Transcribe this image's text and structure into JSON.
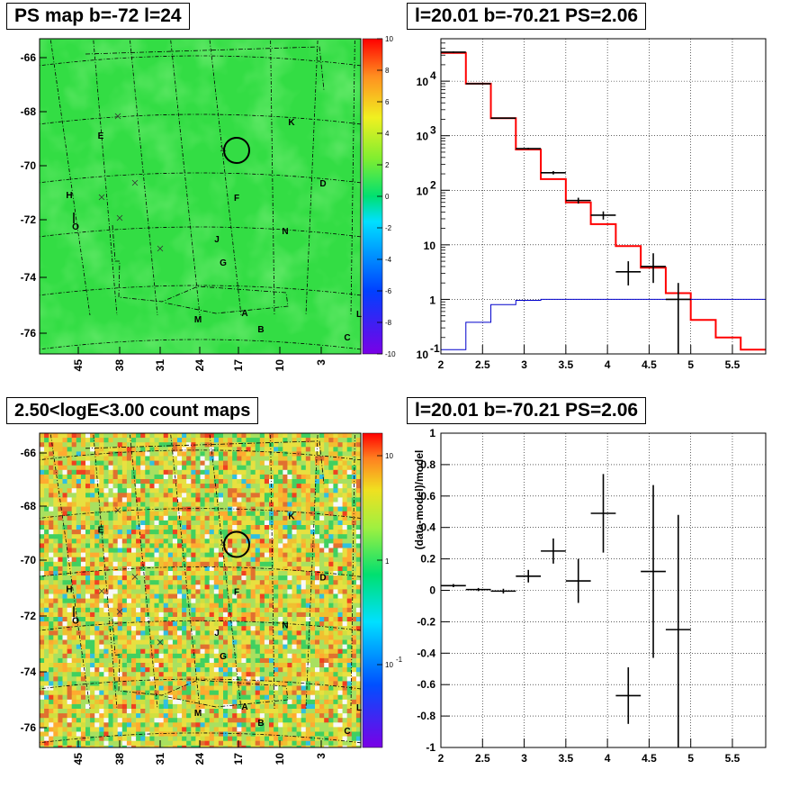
{
  "titles": {
    "tl": "PS map b=-72 l=24",
    "tr": "l=20.01 b=-70.21 PS=2.06",
    "bl": "2.50<logE<3.00 count maps",
    "br": "l=20.01 b=-70.21 PS=2.06"
  },
  "map_axes": {
    "b_ticks": [
      "-66",
      "-68",
      "-70",
      "-72",
      "-74",
      "-76"
    ],
    "l_ticks": [
      "45",
      "38",
      "31",
      "24",
      "17",
      "10",
      "3"
    ]
  },
  "ps_colorbar": {
    "labels": [
      "10",
      "8",
      "6",
      "4",
      "2",
      "0",
      "-2",
      "-4",
      "-6",
      "-8",
      "-10"
    ]
  },
  "count_colorbar": {
    "labels": [
      "10",
      "1",
      "10",
      "-1"
    ]
  },
  "sources": [
    {
      "label": "E"
    },
    {
      "label": "K"
    },
    {
      "label": "D"
    },
    {
      "label": "H"
    },
    {
      "label": "O"
    },
    {
      "label": "F"
    },
    {
      "label": "N"
    },
    {
      "label": "J"
    },
    {
      "label": "G"
    },
    {
      "label": "M"
    },
    {
      "label": "A"
    },
    {
      "label": "B"
    },
    {
      "label": "L"
    },
    {
      "label": "C"
    }
  ],
  "chart_data": [
    {
      "type": "heatmap",
      "title": "PS map b=-72 l=24",
      "xlabel": "",
      "ylabel": "",
      "x_ticks": [
        "45",
        "38",
        "31",
        "24",
        "17",
        "10",
        "3"
      ],
      "y_ticks": [
        "-66",
        "-68",
        "-70",
        "-72",
        "-74",
        "-76"
      ],
      "zlim": [
        -10,
        10
      ],
      "colormap": "rainbow"
    },
    {
      "type": "line",
      "title": "l=20.01 b=-70.21 PS=2.06",
      "x_scale": "linear",
      "y_scale": "log",
      "xlim": [
        2,
        5.9
      ],
      "ylim": [
        0.1,
        60000
      ],
      "x_ticks": [
        "2",
        "2.5",
        "3",
        "3.5",
        "4",
        "4.5",
        "5",
        "5.5"
      ],
      "y_ticks": [
        "10^-1",
        "1",
        "10",
        "10^2",
        "10^3",
        "10^4"
      ],
      "bin_edges": [
        2,
        2.3,
        2.6,
        2.9,
        3.2,
        3.5,
        3.8,
        4.1,
        4.4,
        4.7,
        5.0,
        5.3,
        5.6,
        5.9
      ],
      "series": [
        {
          "color": "#ff0000",
          "style": "step",
          "values": [
            33000,
            9000,
            2100,
            560,
            160,
            60,
            24,
            9.5,
            3.8,
            1.3,
            0.42,
            0.2,
            0.12
          ]
        },
        {
          "color": "#0000cc",
          "style": "step",
          "values": [
            0.12,
            0.38,
            0.8,
            0.96,
            1.0,
            1.0,
            1.0,
            1.0,
            1.0,
            1.0,
            1.0,
            1.0,
            1.0
          ]
        },
        {
          "color": "#000000",
          "style": "errorbar",
          "points": [
            {
              "x": 2.15,
              "y": 34000,
              "xerr": 0.15,
              "ylo": 33000,
              "yhi": 35000
            },
            {
              "x": 2.45,
              "y": 9000,
              "xerr": 0.15,
              "ylo": 8800,
              "yhi": 9200
            },
            {
              "x": 2.75,
              "y": 2100,
              "xerr": 0.15,
              "ylo": 2050,
              "yhi": 2150
            },
            {
              "x": 3.05,
              "y": 580,
              "xerr": 0.15,
              "ylo": 560,
              "yhi": 600
            },
            {
              "x": 3.35,
              "y": 210,
              "xerr": 0.15,
              "ylo": 195,
              "yhi": 225
            },
            {
              "x": 3.65,
              "y": 65,
              "xerr": 0.15,
              "ylo": 57,
              "yhi": 73
            },
            {
              "x": 3.95,
              "y": 35,
              "xerr": 0.15,
              "ylo": 29,
              "yhi": 41
            },
            {
              "x": 4.25,
              "y": 3.2,
              "xerr": 0.15,
              "ylo": 1.8,
              "yhi": 5.0
            },
            {
              "x": 4.55,
              "y": 4.0,
              "xerr": 0.15,
              "ylo": 2.0,
              "yhi": 7.0
            },
            {
              "x": 4.85,
              "y": 1.0,
              "xerr": 0.15,
              "ylo": 0.1,
              "yhi": 2.0
            }
          ]
        }
      ]
    },
    {
      "type": "heatmap",
      "title": "2.50<logE<3.00 count maps",
      "xlabel": "",
      "ylabel": "",
      "x_ticks": [
        "45",
        "38",
        "31",
        "24",
        "17",
        "10",
        "3"
      ],
      "y_ticks": [
        "-66",
        "-68",
        "-70",
        "-72",
        "-74",
        "-76"
      ],
      "z_scale": "log",
      "colormap": "rainbow"
    },
    {
      "type": "scatter",
      "title": "l=20.01 b=-70.21 PS=2.06",
      "xlabel": "",
      "ylabel": "(data-model)/model",
      "xlim": [
        2,
        5.9
      ],
      "ylim": [
        -1,
        1
      ],
      "x_ticks": [
        "2",
        "2.5",
        "3",
        "3.5",
        "4",
        "4.5",
        "5",
        "5.5"
      ],
      "y_ticks": [
        "1",
        "0.8",
        "0.6",
        "0.4",
        "0.2",
        "0",
        "-0.2",
        "-0.4",
        "-0.6",
        "-0.8",
        "-1"
      ],
      "points": [
        {
          "x": 2.15,
          "y": 0.03,
          "xerr": 0.15,
          "ylo": 0.02,
          "yhi": 0.04
        },
        {
          "x": 2.45,
          "y": 0.005,
          "xerr": 0.15,
          "ylo": -0.005,
          "yhi": 0.015
        },
        {
          "x": 2.75,
          "y": -0.005,
          "xerr": 0.15,
          "ylo": -0.02,
          "yhi": 0.01
        },
        {
          "x": 3.05,
          "y": 0.09,
          "xerr": 0.15,
          "ylo": 0.05,
          "yhi": 0.13
        },
        {
          "x": 3.35,
          "y": 0.25,
          "xerr": 0.15,
          "ylo": 0.17,
          "yhi": 0.33
        },
        {
          "x": 3.65,
          "y": 0.06,
          "xerr": 0.15,
          "ylo": -0.08,
          "yhi": 0.2
        },
        {
          "x": 3.95,
          "y": 0.49,
          "xerr": 0.15,
          "ylo": 0.24,
          "yhi": 0.74
        },
        {
          "x": 4.25,
          "y": -0.67,
          "xerr": 0.15,
          "ylo": -0.85,
          "yhi": -0.49
        },
        {
          "x": 4.55,
          "y": 0.12,
          "xerr": 0.15,
          "ylo": -0.43,
          "yhi": 0.67
        },
        {
          "x": 4.85,
          "y": -0.25,
          "xerr": 0.15,
          "ylo": -1.0,
          "yhi": 0.48
        }
      ]
    }
  ]
}
